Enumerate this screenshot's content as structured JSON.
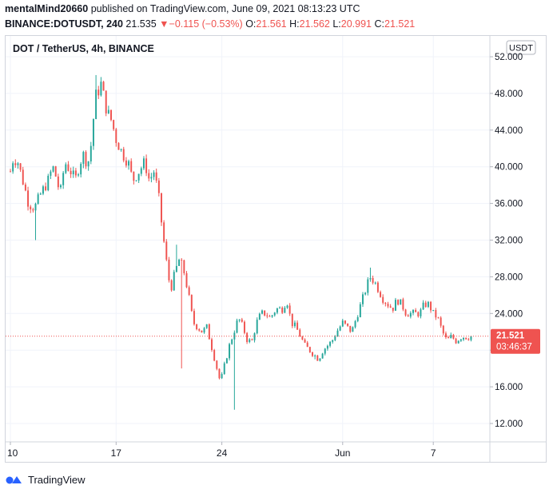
{
  "header": {
    "user": "mentalMind20660",
    "published_text": "published on TradingView.com, June 09, 2021 08:13:23 UTC",
    "symbol": "BINANCE:DOTUSDT, 240",
    "price": "21.535",
    "change_arrow": "▼",
    "change": "−0.115 (−0.53%)",
    "o_label": "O:",
    "o_value": "21.561",
    "h_label": "H:",
    "h_value": "21.562",
    "l_label": "L:",
    "l_value": "20.991",
    "c_label": "C:",
    "c_value": "21.521"
  },
  "chart_data": {
    "type": "candlestick",
    "title": "DOT / TetherUS, 4h, BINANCE",
    "currency_badge": "USDT",
    "y_ticks": [
      "52.000",
      "48.000",
      "44.000",
      "40.000",
      "36.000",
      "32.000",
      "28.000",
      "24.000",
      "20.000",
      "16.000",
      "12.000"
    ],
    "ylim": [
      10,
      53
    ],
    "x_ticks": [
      {
        "label": "10",
        "day": 0
      },
      {
        "label": "17",
        "day": 7
      },
      {
        "label": "24",
        "day": 14
      },
      {
        "label": "Jun",
        "day": 22
      },
      {
        "label": "7",
        "day": 28
      }
    ],
    "last_price_label": "21.521",
    "countdown_label": "03:46:37",
    "last_price": 21.521,
    "up_color": "#26a69a",
    "down_color": "#ef5350",
    "candle_interval_hours": 4,
    "path_days": [
      0,
      0.2,
      0.5,
      0.9,
      1.2,
      1.6,
      2.0,
      2.5,
      2.8,
      3.0,
      3.3,
      3.6,
      4.0,
      4.3,
      4.6,
      4.9,
      5.1,
      5.4,
      5.6,
      6.0,
      6.4,
      6.7,
      7.0,
      7.4,
      7.8,
      8.1,
      8.5,
      8.9,
      9.2,
      9.5,
      9.8,
      10.0,
      10.3,
      10.6,
      10.9,
      11.2,
      11.5,
      11.8,
      12.1,
      12.4,
      12.7,
      13.0,
      13.3,
      13.6,
      13.9,
      14.2,
      14.5,
      14.8,
      15.1,
      15.4,
      15.7,
      16.0,
      16.3,
      16.6,
      16.9,
      17.2,
      17.6,
      18.0,
      18.3,
      18.6,
      18.9,
      19.2,
      19.5,
      19.8,
      20.1,
      20.4,
      20.7,
      21.0,
      21.3,
      21.6,
      22.0,
      22.3,
      22.6,
      22.9,
      23.2,
      23.5,
      23.8,
      24.1,
      24.4,
      24.7,
      25.0,
      25.3,
      25.6,
      25.9,
      26.2,
      26.5,
      26.8,
      27.1,
      27.4,
      27.7,
      28.0,
      28.3,
      28.6,
      28.9,
      29.2,
      29.5,
      29.9,
      30.3,
      30.6
    ],
    "path_close": [
      39.5,
      41.0,
      40.5,
      38.0,
      36.0,
      35.5,
      37.0,
      38.5,
      40.0,
      39.0,
      37.0,
      40.5,
      39.5,
      38.5,
      40.5,
      41.5,
      40.0,
      43.0,
      47.5,
      49.0,
      46.0,
      45.0,
      43.0,
      41.5,
      40.5,
      38.5,
      39.5,
      40.5,
      38.5,
      39.5,
      37.0,
      34.0,
      30.0,
      26.5,
      28.5,
      30.0,
      28.5,
      26.0,
      23.0,
      22.5,
      22.0,
      22.5,
      20.5,
      18.5,
      16.5,
      18.5,
      20.5,
      22.0,
      23.5,
      22.5,
      21.0,
      21.0,
      23.0,
      24.0,
      24.0,
      23.5,
      24.5,
      24.5,
      25.5,
      23.0,
      22.5,
      21.5,
      20.5,
      20.0,
      19.5,
      19.0,
      20.0,
      20.5,
      21.0,
      22.0,
      23.0,
      22.5,
      22.0,
      23.5,
      25.0,
      26.5,
      28.0,
      27.5,
      26.5,
      25.5,
      25.0,
      24.5,
      25.5,
      25.0,
      24.0,
      24.0,
      24.0,
      24.0,
      25.0,
      25.0,
      24.0,
      23.5,
      22.0,
      21.0,
      21.5,
      21.0,
      21.5,
      21.4,
      21.52
    ],
    "spikes": [
      {
        "day": 1.6,
        "low": 32.0
      },
      {
        "day": 5.7,
        "high": 50.0
      },
      {
        "day": 11.3,
        "low": 18.0
      },
      {
        "day": 11.0,
        "high": 31.5
      },
      {
        "day": 14.8,
        "low": 13.5
      },
      {
        "day": 20.1,
        "low": 19.0
      },
      {
        "day": 23.8,
        "high": 29.0
      }
    ]
  }
}
